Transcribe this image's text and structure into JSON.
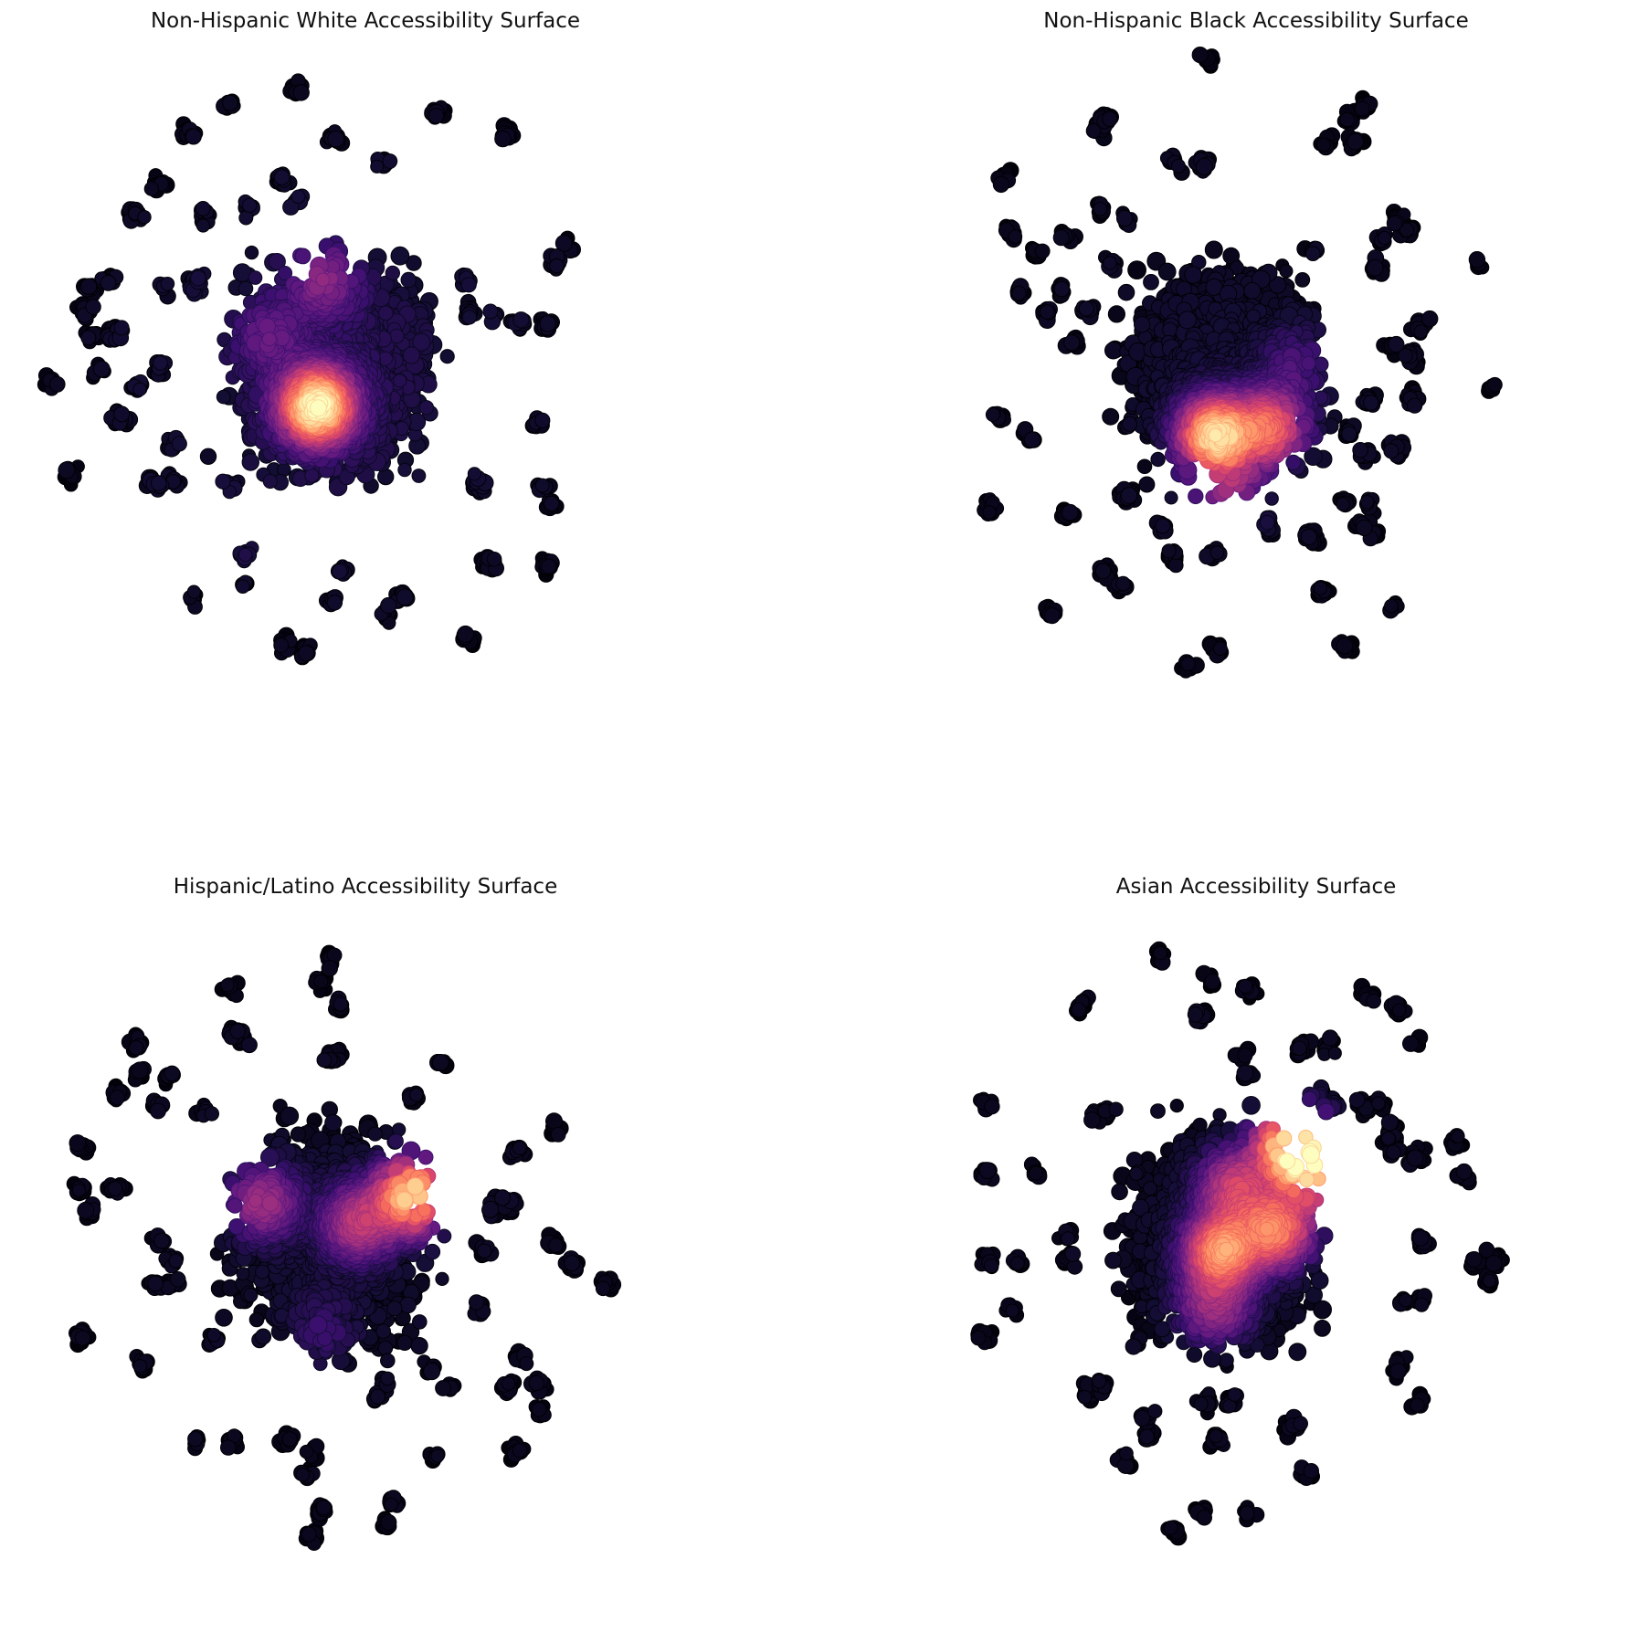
{
  "figure": {
    "colormap": "magma",
    "colormap_stops": [
      "#000004",
      "#140e36",
      "#3b0f70",
      "#641a80",
      "#8c2981",
      "#b73779",
      "#de4968",
      "#f7705c",
      "#fe9f6d",
      "#fecf92",
      "#fcfdbf"
    ]
  },
  "panels": [
    {
      "id": "white",
      "title": "Non-Hispanic White Accessibility Surface"
    },
    {
      "id": "black",
      "title": "Non-Hispanic Black Accessibility Surface"
    },
    {
      "id": "hispanic",
      "title": "Hispanic/Latino Accessibility Surface"
    },
    {
      "id": "asian",
      "title": "Asian Accessibility Surface"
    }
  ],
  "chart_data": [
    {
      "type": "scatter",
      "title": "Non-Hispanic White Accessibility Surface",
      "colorscale": "magma",
      "base_level": 0.12,
      "hotspots": [
        {
          "x": 0.43,
          "y": 0.52,
          "intensity": 0.88
        },
        {
          "x": 0.44,
          "y": 0.34,
          "intensity": 0.28
        },
        {
          "x": 0.36,
          "y": 0.42,
          "intensity": 0.18
        },
        {
          "x": 0.38,
          "y": 0.72,
          "intensity": 0.12
        }
      ]
    },
    {
      "type": "scatter",
      "title": "Non-Hispanic Black Accessibility Surface",
      "colorscale": "magma",
      "base_level": 0.05,
      "hotspots": [
        {
          "x": 0.44,
          "y": 0.56,
          "intensity": 0.82
        },
        {
          "x": 0.52,
          "y": 0.55,
          "intensity": 0.58
        },
        {
          "x": 0.46,
          "y": 0.64,
          "intensity": 0.32
        },
        {
          "x": 0.56,
          "y": 0.46,
          "intensity": 0.16
        }
      ]
    },
    {
      "type": "scatter",
      "title": "Hispanic/Latino Accessibility Surface",
      "colorscale": "magma",
      "base_level": 0.05,
      "hotspots": [
        {
          "x": 0.57,
          "y": 0.41,
          "intensity": 0.85
        },
        {
          "x": 0.49,
          "y": 0.45,
          "intensity": 0.42
        },
        {
          "x": 0.35,
          "y": 0.42,
          "intensity": 0.38
        },
        {
          "x": 0.44,
          "y": 0.6,
          "intensity": 0.12
        }
      ]
    },
    {
      "type": "scatter",
      "title": "Asian Accessibility Surface",
      "colorscale": "magma",
      "base_level": 0.04,
      "hotspots": [
        {
          "x": 0.55,
          "y": 0.34,
          "intensity": 0.85
        },
        {
          "x": 0.59,
          "y": 0.38,
          "intensity": 0.65
        },
        {
          "x": 0.45,
          "y": 0.49,
          "intensity": 0.68
        },
        {
          "x": 0.53,
          "y": 0.46,
          "intensity": 0.62
        },
        {
          "x": 0.47,
          "y": 0.4,
          "intensity": 0.45
        },
        {
          "x": 0.44,
          "y": 0.57,
          "intensity": 0.35
        }
      ]
    }
  ]
}
